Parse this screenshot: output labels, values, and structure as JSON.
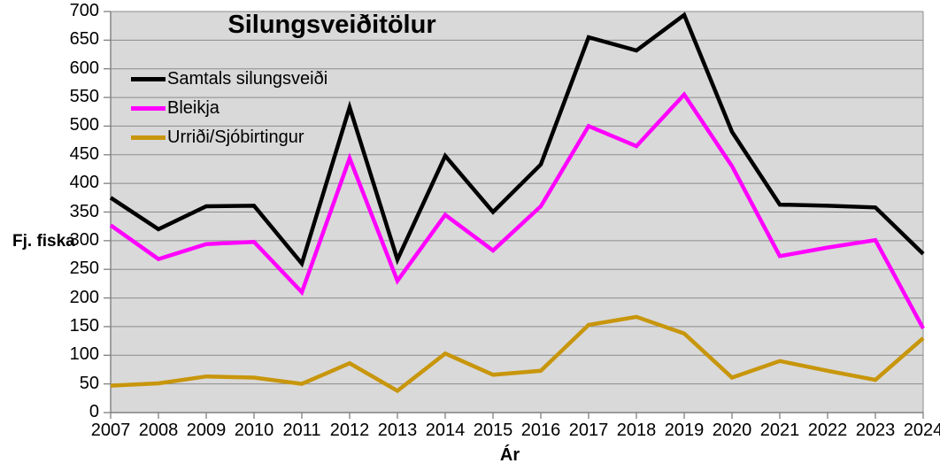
{
  "chart_data": {
    "type": "line",
    "title": "Silungsveiðitölur",
    "xlabel": "Ár",
    "ylabel": "Fj. fiska",
    "x": [
      2007,
      2008,
      2009,
      2010,
      2011,
      2012,
      2013,
      2014,
      2015,
      2016,
      2017,
      2018,
      2019,
      2020,
      2021,
      2022,
      2023,
      2024
    ],
    "series": [
      {
        "name": "Samtals silungsveiði",
        "color": "#000000",
        "values": [
          375,
          320,
          360,
          361,
          260,
          533,
          267,
          448,
          350,
          433,
          655,
          632,
          694,
          490,
          363,
          361,
          358,
          277
        ]
      },
      {
        "name": "Bleikja",
        "color": "#FF00FF",
        "values": [
          327,
          268,
          294,
          298,
          210,
          444,
          230,
          345,
          283,
          360,
          500,
          465,
          555,
          430,
          273,
          288,
          301,
          147
        ]
      },
      {
        "name": "Urriði/Sjóbirtingur",
        "color": "#C8960C",
        "values": [
          47,
          51,
          63,
          61,
          50,
          86,
          38,
          103,
          66,
          73,
          153,
          167,
          138,
          61,
          90,
          73,
          57,
          130
        ]
      }
    ],
    "ylim": [
      0,
      700
    ],
    "ytick_step": 50,
    "yticks": [
      0,
      50,
      100,
      150,
      200,
      250,
      300,
      350,
      400,
      450,
      500,
      550,
      600,
      650,
      700
    ],
    "grid": "horizontal-major",
    "legend_position": "upper-left-inside",
    "plot_bg": "#D9D9D9",
    "gridline_color": "#8C8C8C",
    "axis_color": "#808080",
    "line_width": 4.5
  }
}
